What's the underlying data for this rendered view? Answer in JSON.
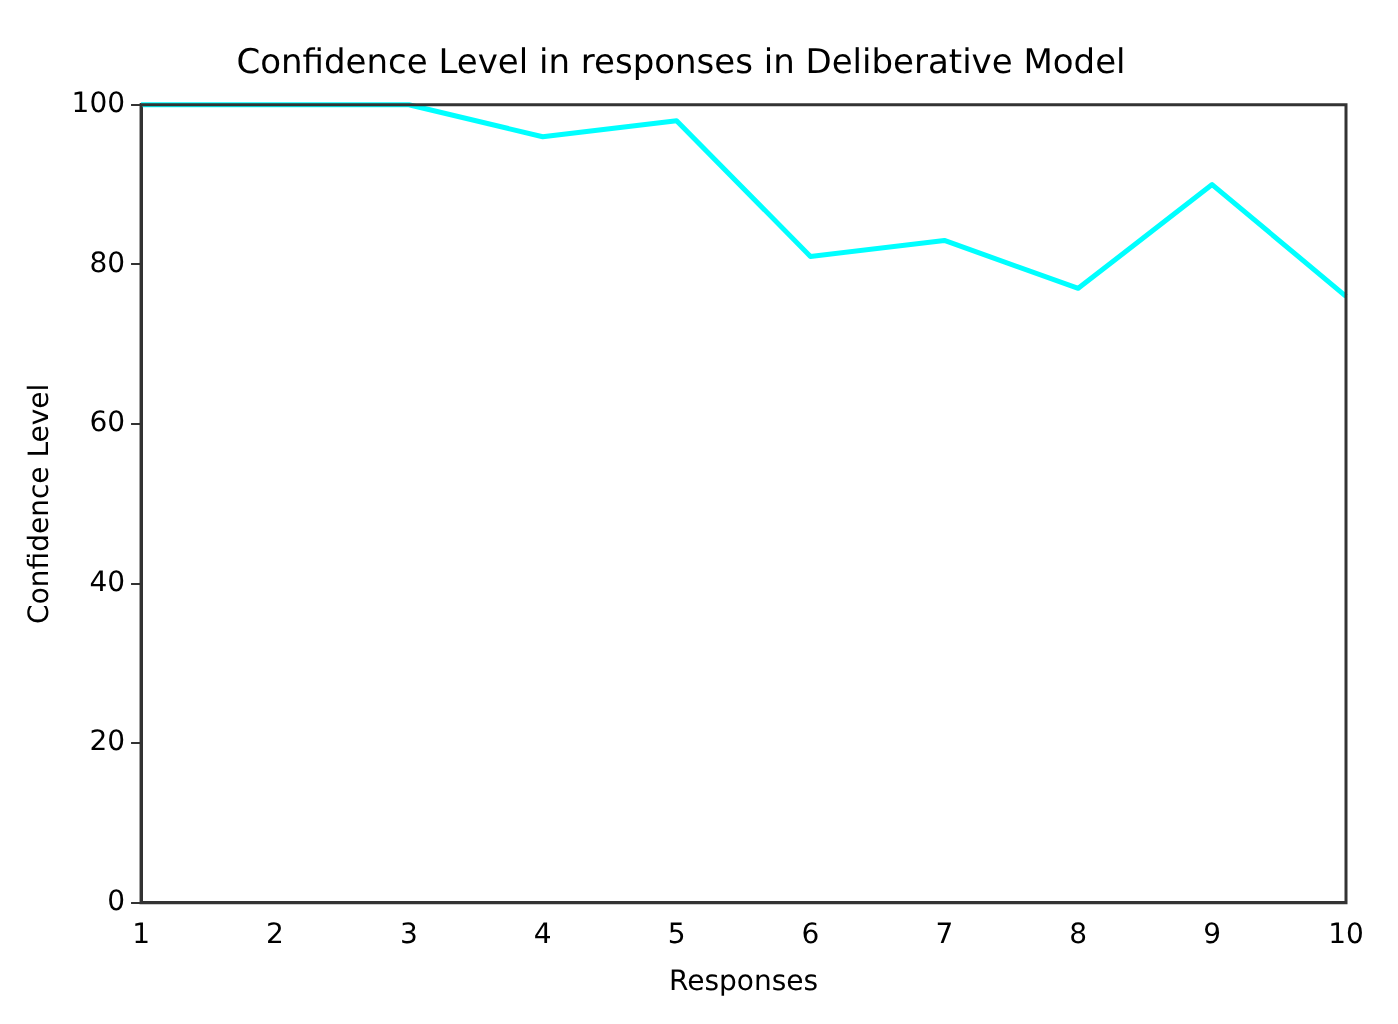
{
  "chart_data": {
    "type": "line",
    "title": "Confidence Level in responses in Deliberative Model",
    "xlabel": "Responses",
    "ylabel": "Confidence Level",
    "x": [
      1,
      2,
      3,
      4,
      5,
      6,
      7,
      8,
      9,
      10
    ],
    "series": [
      {
        "color": "#00ffff",
        "values": [
          100,
          100,
          100,
          96,
          98,
          81,
          83,
          77,
          90,
          76
        ]
      }
    ],
    "xlim": [
      1,
      10
    ],
    "xticks": [
      1,
      2,
      3,
      4,
      5,
      6,
      7,
      8,
      9,
      10
    ],
    "ylim": [
      0,
      100
    ],
    "yticks": [
      0,
      20,
      40,
      60,
      80,
      100
    ],
    "grid": false,
    "legend": false,
    "marker": "none",
    "line_style": "solid"
  }
}
